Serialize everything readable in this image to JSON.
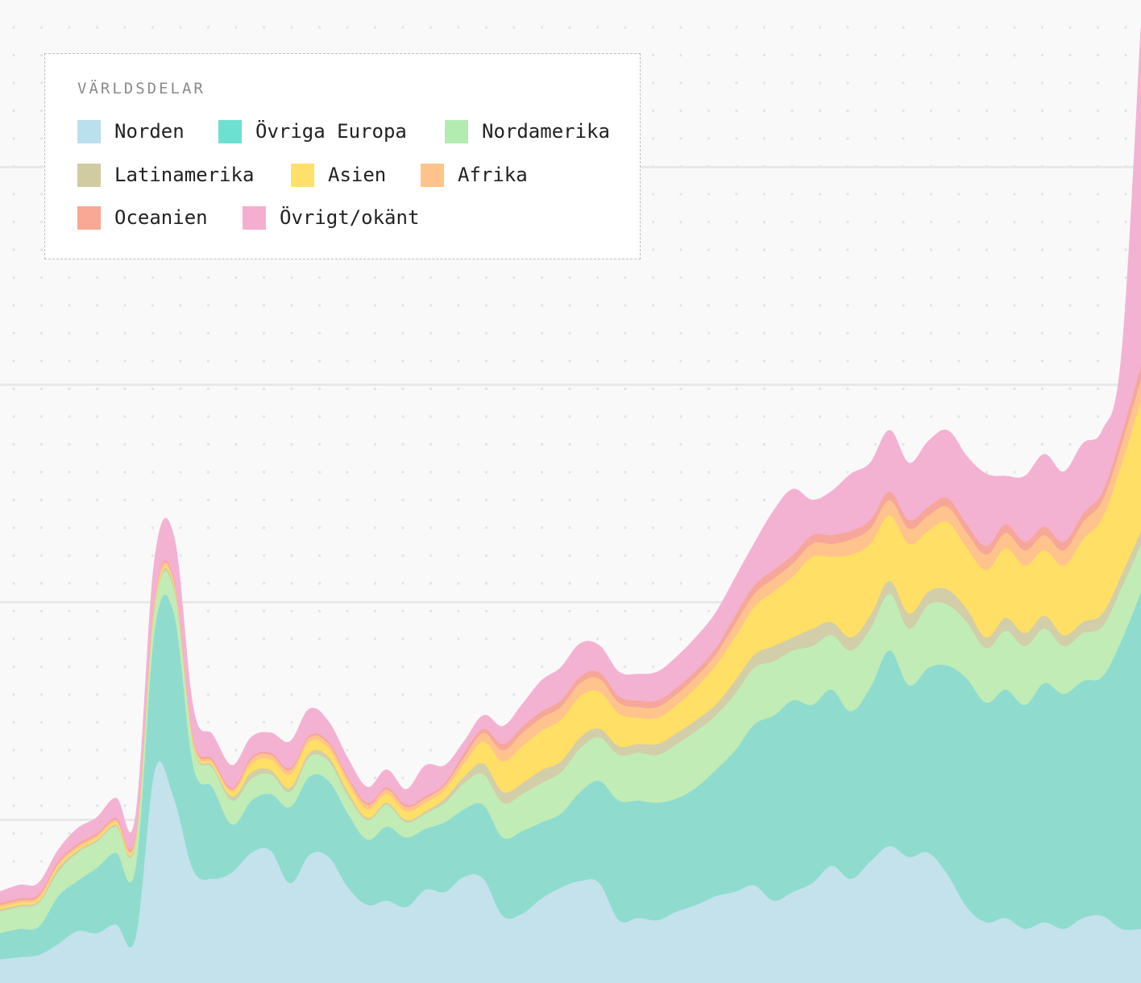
{
  "legend": {
    "title": "VÄRLDSDELAR",
    "items": [
      {
        "label": "Norden",
        "color": "#b9e0ec"
      },
      {
        "label": "Övriga Europa",
        "color": "#6ee0d2"
      },
      {
        "label": "Nordamerika",
        "color": "#b3ecb0"
      },
      {
        "label": "Latinamerika",
        "color": "#d1cba2"
      },
      {
        "label": "Asien",
        "color": "#ffe06a"
      },
      {
        "label": "Afrika",
        "color": "#ffc48a"
      },
      {
        "label": "Oceanien",
        "color": "#f8a894"
      },
      {
        "label": "Övrigt/okänt",
        "color": "#f5aed0"
      }
    ]
  },
  "chart_data": {
    "type": "area",
    "stacked": true,
    "grid": true,
    "legend_position": "top-left",
    "title": "",
    "xlabel": "",
    "ylabel": "",
    "ylim": [
      0,
      450
    ],
    "y_gridlines": [
      75,
      175,
      275,
      375
    ],
    "x": [
      0,
      1,
      2,
      3,
      4,
      5,
      6,
      7,
      8,
      9,
      10,
      11,
      12,
      13,
      14,
      15,
      16,
      17,
      18,
      19,
      20,
      21,
      22,
      23,
      24,
      25,
      26,
      27,
      28,
      29,
      30,
      31,
      32,
      33,
      34,
      35,
      36,
      37,
      38,
      39,
      40,
      41,
      42,
      43,
      44,
      45,
      46,
      47,
      48,
      49,
      50,
      51,
      52,
      53,
      54,
      55,
      56,
      57,
      58,
      59
    ],
    "series": [
      {
        "name": "Norden",
        "color": "#c4e2ec",
        "values": [
          11,
          12,
          13,
          18,
          24,
          23,
          27,
          21,
          98,
          85,
          52,
          48,
          51,
          60,
          61,
          46,
          59,
          58,
          44,
          36,
          38,
          35,
          43,
          42,
          49,
          48,
          31,
          32,
          39,
          44,
          47,
          46,
          29,
          30,
          29,
          33,
          36,
          40,
          42,
          45,
          38,
          42,
          46,
          54,
          48,
          56,
          63,
          58,
          60,
          50,
          35,
          28,
          30,
          25,
          28,
          25,
          30,
          31,
          25,
          25
        ]
      },
      {
        "name": "Övriga Europa",
        "color": "#8fdccf",
        "values": [
          12,
          13,
          13,
          22,
          23,
          30,
          33,
          32,
          65,
          85,
          48,
          42,
          22,
          24,
          26,
          35,
          36,
          35,
          34,
          30,
          34,
          32,
          28,
          32,
          31,
          34,
          36,
          38,
          35,
          34,
          41,
          47,
          55,
          54,
          54,
          52,
          54,
          58,
          65,
          74,
          85,
          88,
          82,
          81,
          77,
          80,
          90,
          79,
          85,
          96,
          105,
          101,
          105,
          103,
          110,
          108,
          109,
          110,
          133,
          155
        ]
      },
      {
        "name": "Nordamerika",
        "color": "#c2ecb5",
        "values": [
          10,
          10,
          11,
          11,
          13,
          12,
          12,
          11,
          10,
          11,
          9,
          9,
          11,
          10,
          9,
          7,
          9,
          9,
          8,
          9,
          10,
          7,
          7,
          9,
          12,
          14,
          16,
          17,
          18,
          19,
          20,
          20,
          21,
          22,
          22,
          25,
          26,
          25,
          26,
          26,
          25,
          23,
          27,
          25,
          28,
          27,
          26,
          26,
          29,
          28,
          26,
          25,
          27,
          27,
          25,
          22,
          22,
          23,
          24,
          22
        ]
      },
      {
        "name": "Latinamerika",
        "color": "#d2cea9",
        "values": [
          1,
          1,
          1,
          2,
          1,
          1,
          1,
          1,
          1,
          2,
          1,
          1,
          2,
          3,
          2,
          2,
          2,
          2,
          2,
          1,
          1,
          1,
          1,
          2,
          3,
          5,
          5,
          5,
          6,
          5,
          5,
          4,
          4,
          4,
          5,
          5,
          5,
          5,
          6,
          6,
          7,
          6,
          8,
          6,
          6,
          6,
          6,
          7,
          6,
          7,
          6,
          5,
          6,
          6,
          6,
          5,
          5,
          6,
          6,
          6
        ]
      },
      {
        "name": "Asien",
        "color": "#ffdf65",
        "values": [
          1,
          1,
          1,
          1,
          1,
          1,
          1,
          1,
          1,
          1,
          1,
          1,
          2,
          4,
          5,
          6,
          5,
          4,
          4,
          4,
          4,
          4,
          4,
          4,
          6,
          10,
          14,
          17,
          18,
          19,
          19,
          17,
          15,
          12,
          12,
          13,
          15,
          18,
          20,
          22,
          25,
          28,
          33,
          30,
          38,
          33,
          30,
          32,
          28,
          31,
          28,
          31,
          32,
          31,
          30,
          32,
          38,
          44,
          51,
          60
        ]
      },
      {
        "name": "Afrika",
        "color": "#ffc48d",
        "values": [
          1,
          1,
          1,
          1,
          1,
          1,
          1,
          1,
          2,
          1,
          1,
          1,
          1,
          2,
          2,
          2,
          2,
          2,
          2,
          2,
          2,
          2,
          2,
          2,
          3,
          4,
          5,
          6,
          6,
          6,
          6,
          6,
          5,
          5,
          5,
          5,
          5,
          5,
          6,
          6,
          6,
          6,
          6,
          6,
          7,
          7,
          7,
          7,
          7,
          7,
          7,
          7,
          7,
          7,
          7,
          7,
          8,
          8,
          9,
          10
        ]
      },
      {
        "name": "Oceanien",
        "color": "#f6a79a",
        "values": [
          1,
          1,
          1,
          1,
          1,
          1,
          1,
          1,
          1,
          1,
          1,
          1,
          1,
          1,
          1,
          1,
          1,
          1,
          1,
          1,
          1,
          1,
          1,
          1,
          2,
          2,
          3,
          3,
          3,
          3,
          3,
          3,
          3,
          3,
          3,
          3,
          3,
          3,
          4,
          4,
          4,
          4,
          4,
          4,
          4,
          4,
          4,
          4,
          4,
          4,
          4,
          4,
          4,
          4,
          4,
          4,
          4,
          4,
          5,
          6
        ]
      },
      {
        "name": "Övrigt/okänt",
        "color": "#f4b2d2",
        "values": [
          5,
          6,
          5,
          5,
          7,
          7,
          9,
          8,
          17,
          19,
          13,
          11,
          10,
          9,
          9,
          12,
          12,
          9,
          8,
          7,
          8,
          7,
          14,
          8,
          5,
          6,
          8,
          10,
          14,
          15,
          15,
          12,
          11,
          12,
          13,
          14,
          15,
          16,
          17,
          19,
          27,
          30,
          16,
          20,
          26,
          26,
          28,
          26,
          30,
          31,
          31,
          33,
          22,
          30,
          33,
          32,
          32,
          28,
          36,
          155
        ]
      }
    ]
  }
}
